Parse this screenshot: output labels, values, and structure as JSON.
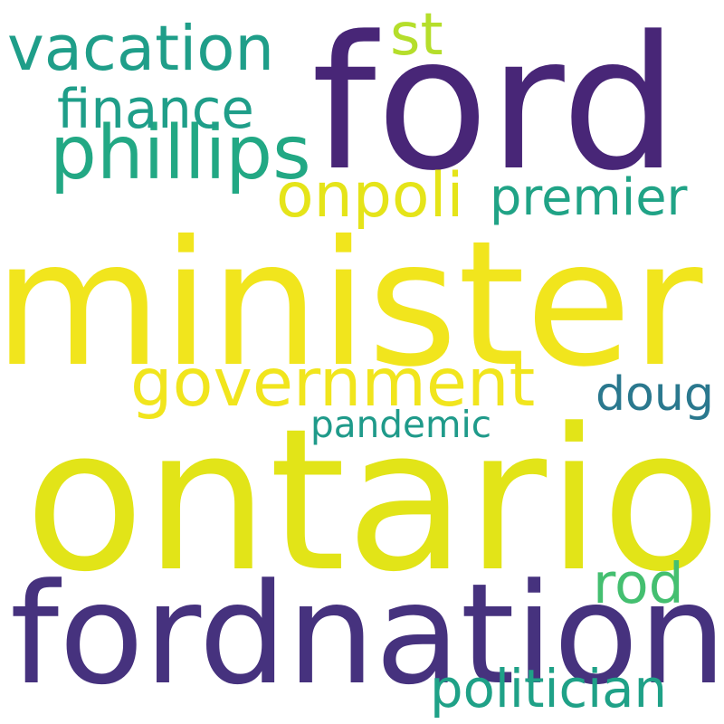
{
  "words": [
    {
      "text": "ford",
      "color": "#482677"
    },
    {
      "text": "minister",
      "color": "#f1e51d"
    },
    {
      "text": "ontario",
      "color": "#e2e418"
    },
    {
      "text": "fordnation",
      "color": "#46327e"
    },
    {
      "text": "vacation",
      "color": "#1f9e89"
    },
    {
      "text": "government",
      "color": "#f1e51d"
    },
    {
      "text": "phillips",
      "color": "#22a884"
    },
    {
      "text": "finance",
      "color": "#1f9e89"
    },
    {
      "text": "onpoli",
      "color": "#e5e419"
    },
    {
      "text": "premier",
      "color": "#20a386"
    },
    {
      "text": "doug",
      "color": "#2a788e"
    },
    {
      "text": "pandemic",
      "color": "#1f9a8a"
    },
    {
      "text": "rod",
      "color": "#44bf70"
    },
    {
      "text": "politician",
      "color": "#1fa187"
    },
    {
      "text": "st",
      "color": "#b5de2b"
    }
  ]
}
